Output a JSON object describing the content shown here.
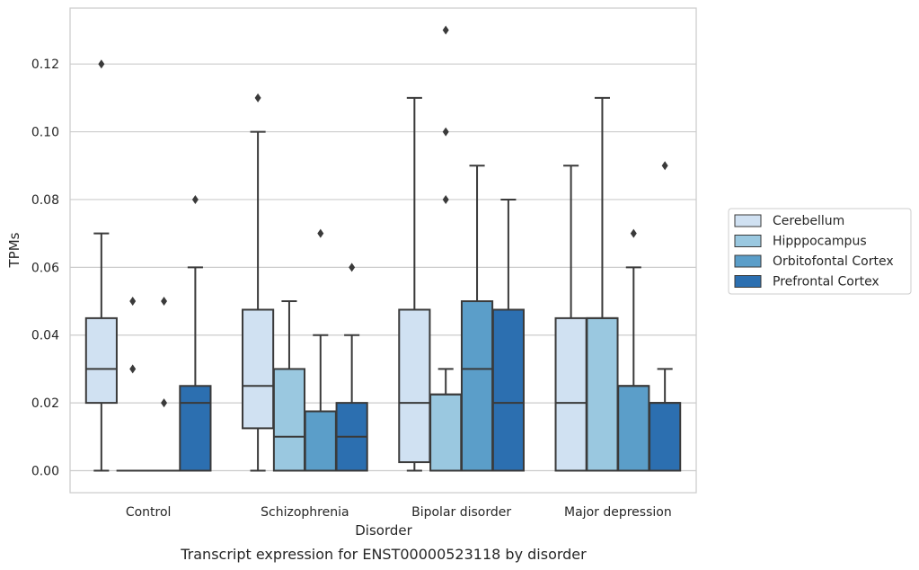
{
  "chart_data": {
    "type": "box",
    "xlabel": "Disorder",
    "ylabel": "TPMs",
    "caption": "Transcript expression for ENST00000523118 by disorder",
    "ylim": [
      -0.0065,
      0.1365
    ],
    "yticks": [
      "0.00",
      "0.02",
      "0.04",
      "0.06",
      "0.08",
      "0.10",
      "0.12"
    ],
    "grid": "horizontal",
    "legend_position": "right",
    "categories": [
      "Control",
      "Schizophrenia",
      "Bipolar disorder",
      "Major depression"
    ],
    "series": [
      {
        "name": "Cerebellum",
        "color": "#d0e1f2",
        "boxes": [
          {
            "q1": 0.02,
            "median": 0.03,
            "q3": 0.045,
            "whisker_low": 0.0,
            "whisker_high": 0.07,
            "outliers": [
              0.12
            ]
          },
          {
            "q1": 0.0125,
            "median": 0.025,
            "q3": 0.0475,
            "whisker_low": 0.0,
            "whisker_high": 0.1,
            "outliers": [
              0.11
            ]
          },
          {
            "q1": 0.0025,
            "median": 0.02,
            "q3": 0.0475,
            "whisker_low": 0.0,
            "whisker_high": 0.11,
            "outliers": []
          },
          {
            "q1": 0.0,
            "median": 0.02,
            "q3": 0.045,
            "whisker_low": 0.0,
            "whisker_high": 0.09,
            "outliers": []
          }
        ]
      },
      {
        "name": "Hipppocampus",
        "color": "#9ac8e0",
        "boxes": [
          {
            "q1": 0.0,
            "median": 0.0,
            "q3": 0.0,
            "whisker_low": 0.0,
            "whisker_high": 0.0,
            "outliers": [
              0.03,
              0.05
            ]
          },
          {
            "q1": 0.0,
            "median": 0.01,
            "q3": 0.03,
            "whisker_low": 0.0,
            "whisker_high": 0.05,
            "outliers": []
          },
          {
            "q1": 0.0,
            "median": 0.0225,
            "q3": 0.0225,
            "whisker_low": 0.0,
            "whisker_high": 0.03,
            "outliers": [
              0.08,
              0.1,
              0.13
            ]
          },
          {
            "q1": 0.0,
            "median": 0.045,
            "q3": 0.045,
            "whisker_low": 0.0,
            "whisker_high": 0.11,
            "outliers": []
          }
        ]
      },
      {
        "name": "Orbitofontal Cortex",
        "color": "#5b9ec9",
        "boxes": [
          {
            "q1": 0.0,
            "median": 0.0,
            "q3": 0.0,
            "whisker_low": 0.0,
            "whisker_high": 0.0,
            "outliers": [
              0.02,
              0.05
            ]
          },
          {
            "q1": 0.0,
            "median": 0.0175,
            "q3": 0.0175,
            "whisker_low": 0.0,
            "whisker_high": 0.04,
            "outliers": [
              0.07
            ]
          },
          {
            "q1": 0.0,
            "median": 0.03,
            "q3": 0.05,
            "whisker_low": 0.0,
            "whisker_high": 0.09,
            "outliers": []
          },
          {
            "q1": 0.0,
            "median": 0.025,
            "q3": 0.025,
            "whisker_low": 0.0,
            "whisker_high": 0.06,
            "outliers": [
              0.07
            ]
          }
        ]
      },
      {
        "name": "Prefrontal Cortex",
        "color": "#2c6fb0",
        "boxes": [
          {
            "q1": 0.0,
            "median": 0.02,
            "q3": 0.025,
            "whisker_low": 0.0,
            "whisker_high": 0.06,
            "outliers": [
              0.08
            ]
          },
          {
            "q1": 0.0,
            "median": 0.01,
            "q3": 0.02,
            "whisker_low": 0.0,
            "whisker_high": 0.04,
            "outliers": [
              0.06
            ]
          },
          {
            "q1": 0.0,
            "median": 0.02,
            "q3": 0.0475,
            "whisker_low": 0.0,
            "whisker_high": 0.08,
            "outliers": []
          },
          {
            "q1": 0.0,
            "median": 0.02,
            "q3": 0.02,
            "whisker_low": 0.0,
            "whisker_high": 0.03,
            "outliers": [
              0.09
            ]
          }
        ]
      }
    ]
  },
  "colors": {
    "edge": "#3a3a3a",
    "grid": "#cccccc",
    "frame": "#cccccc",
    "text": "#262626"
  }
}
